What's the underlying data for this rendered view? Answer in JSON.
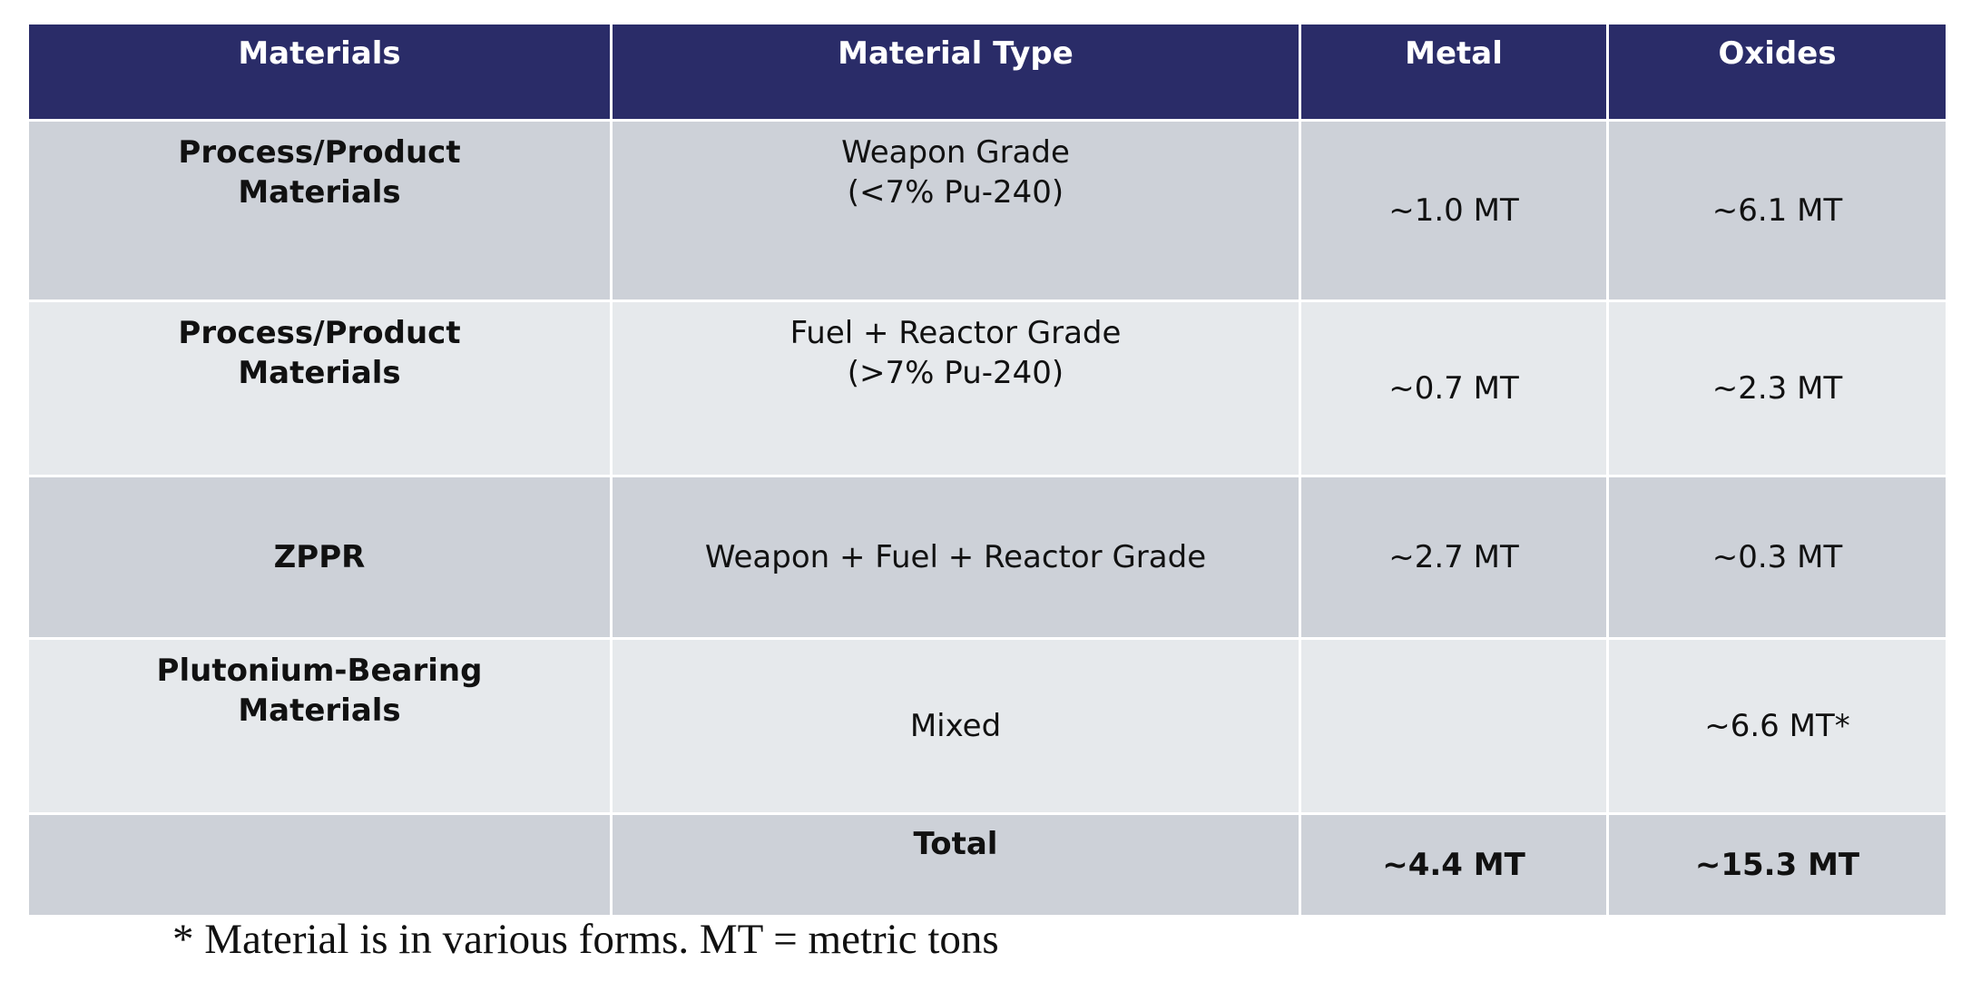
{
  "headers": [
    "Materials",
    "Material Type",
    "Metal",
    "Oxides"
  ],
  "rows": [
    {
      "materials": "Process/Product\nMaterials",
      "material_type": "Weapon Grade\n(<7% Pu-240)",
      "metal": "~1.0 MT",
      "oxides": "~6.1 MT"
    },
    {
      "materials": "Process/Product\nMaterials",
      "material_type": "Fuel + Reactor Grade\n(>7% Pu-240)",
      "metal": "~0.7 MT",
      "oxides": "~2.3 MT"
    },
    {
      "materials": "ZPPR",
      "material_type": "Weapon + Fuel + Reactor Grade",
      "metal": "~2.7 MT",
      "oxides": "~0.3 MT"
    },
    {
      "materials": "Plutonium-Bearing\nMaterials",
      "material_type": "Mixed",
      "metal": "",
      "oxides": "~6.6 MT*"
    }
  ],
  "total": {
    "label": "Total",
    "metal": "~4.4 MT",
    "oxides": "~15.3 MT"
  },
  "footnote": "* Material is in various forms. MT = metric tons",
  "colors": {
    "header_bg": "#2a2c68",
    "row_dark": "#cdd1d8",
    "row_light": "#e6e9ec"
  }
}
